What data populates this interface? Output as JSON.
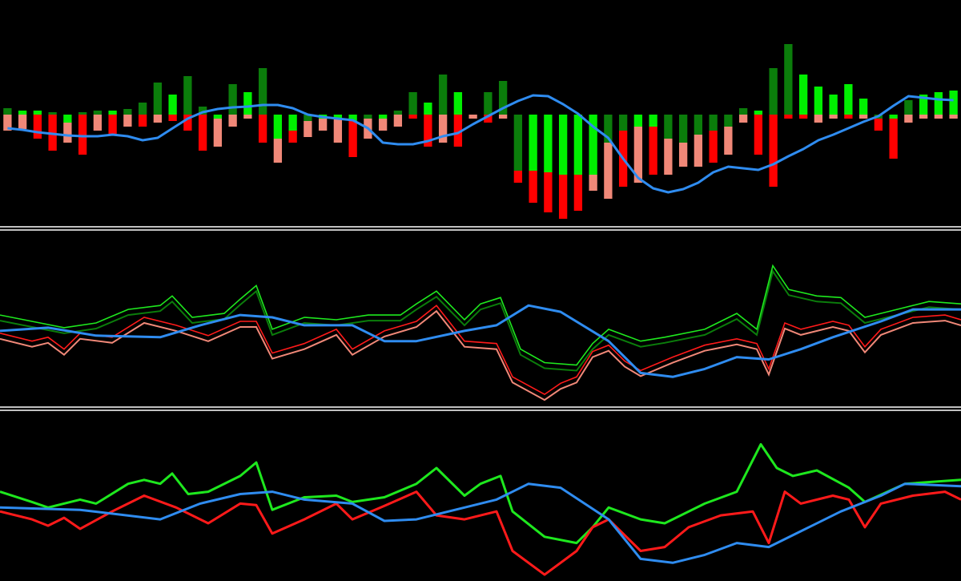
{
  "chart_data": [
    {
      "type": "bar",
      "ylim": [
        -137,
        143
      ],
      "series": [
        {
          "values": [
            8,
            5,
            5,
            3,
            -10,
            3,
            5,
            5,
            7,
            15,
            40,
            25,
            48,
            10,
            -5,
            38,
            28,
            58,
            -30,
            -20,
            -8,
            -5,
            -5,
            -8,
            -5,
            -5,
            5,
            28,
            15,
            50,
            28,
            0,
            28,
            42,
            -70,
            -70,
            -72,
            -75,
            -75,
            -75,
            -35,
            -20,
            -15,
            -15,
            -30,
            -35,
            -25,
            -20,
            -15,
            8,
            5,
            58,
            88,
            50,
            35,
            25,
            38,
            20,
            -5,
            -5,
            18,
            25,
            28,
            30
          ],
          "colors": [
            "#0b7d0b",
            "#00f000",
            "#00f000",
            "#0b7d0b",
            "#00f000",
            "#0b7d0b",
            "#0b7d0b",
            "#00f000",
            "#0b7d0b",
            "#0b7d0b",
            "#0b7d0b",
            "#00f000",
            "#0b7d0b",
            "#0b7d0b",
            "#00f000",
            "#0b7d0b",
            "#00f000",
            "#0b7d0b",
            "#00f000",
            "#00f000",
            "#0b7d0b",
            "#00f000",
            "#00f000",
            "#00f000",
            "#0b7d0b",
            "#00f000",
            "#0b7d0b",
            "#0b7d0b",
            "#00f000",
            "#0b7d0b",
            "#00f000",
            "#0b7d0b",
            "#0b7d0b",
            "#0b7d0b",
            "#0b7d0b",
            "#00f000",
            "#00f000",
            "#00f000",
            "#00f000",
            "#00f000",
            "#0b7d0b",
            "#0b7d0b",
            "#00f000",
            "#00f000",
            "#0b7d0b",
            "#0b7d0b",
            "#0b7d0b",
            "#0b7d0b",
            "#0b7d0b",
            "#0b7d0b",
            "#00f000",
            "#0b7d0b",
            "#0b7d0b",
            "#00f000",
            "#00f000",
            "#00f000",
            "#00f000",
            "#00f000",
            "#0b7d0b",
            "#00f000",
            "#0b7d0b",
            "#00f000",
            "#00f000",
            "#00f000"
          ]
        },
        {
          "values": [
            -20,
            -18,
            -30,
            -45,
            -25,
            -50,
            -20,
            -25,
            -15,
            -15,
            -10,
            -8,
            -20,
            -45,
            -35,
            -15,
            -5,
            -35,
            -30,
            -15,
            -20,
            -15,
            -30,
            -45,
            -25,
            -15,
            -15,
            -5,
            -40,
            -35,
            -40,
            -5,
            -10,
            -5,
            -15,
            -40,
            -50,
            -55,
            -45,
            -20,
            -70,
            -70,
            -70,
            -60,
            -45,
            -30,
            -40,
            -40,
            -35,
            -10,
            -50,
            -90,
            -5,
            -5,
            -10,
            -5,
            -5,
            -5,
            -15,
            -50,
            -10,
            -5,
            -5,
            -5
          ],
          "colors": [
            "#f08878",
            "#f08878",
            "#ff0000",
            "#ff0000",
            "#f08878",
            "#ff0000",
            "#f08878",
            "#ff0000",
            "#f08878",
            "#ff0000",
            "#f08878",
            "#ff0000",
            "#ff0000",
            "#ff0000",
            "#f08878",
            "#f08878",
            "#f08878",
            "#ff0000",
            "#f08878",
            "#ff0000",
            "#f08878",
            "#f08878",
            "#f08878",
            "#ff0000",
            "#f08878",
            "#f08878",
            "#f08878",
            "#ff0000",
            "#ff0000",
            "#f08878",
            "#ff0000",
            "#f08878",
            "#ff0000",
            "#f08878",
            "#ff0000",
            "#ff0000",
            "#ff0000",
            "#ff0000",
            "#ff0000",
            "#f08878",
            "#f08878",
            "#ff0000",
            "#f08878",
            "#ff0000",
            "#f08878",
            "#f08878",
            "#f08878",
            "#ff0000",
            "#f08878",
            "#f08878",
            "#ff0000",
            "#ff0000",
            "#ff0000",
            "#ff0000",
            "#f08878",
            "#f08878",
            "#ff0000",
            "#f08878",
            "#ff0000",
            "#ff0000",
            "#f08878",
            "#f08878",
            "#f08878",
            "#f08878"
          ]
        }
      ],
      "line": {
        "color": "#2f8cf0",
        "values": [
          -17,
          -19,
          -22,
          -24,
          -26,
          -27,
          -27,
          -25,
          -27,
          -32,
          -29,
          -17,
          -5,
          3,
          7,
          9,
          10,
          12,
          12,
          8,
          0,
          -3,
          -5,
          -7,
          -17,
          -35,
          -37,
          -37,
          -33,
          -27,
          -23,
          -12,
          -2,
          8,
          17,
          24,
          23,
          13,
          1,
          -15,
          -29,
          -55,
          -79,
          -92,
          -97,
          -93,
          -85,
          -72,
          -65,
          -67,
          -69,
          -62,
          -52,
          -43,
          -32,
          -25,
          -17,
          -9,
          -2,
          11,
          23,
          21,
          19,
          18
        ]
      }
    },
    {
      "type": "line",
      "xlim": [
        0,
        1200
      ],
      "ylim": [
        0,
        215
      ],
      "series": [
        {
          "color": "#1ee81e",
          "shadow_color": "#0b7d0b",
          "x": [
            0,
            40,
            80,
            120,
            160,
            200,
            215,
            240,
            280,
            300,
            320,
            340,
            380,
            420,
            460,
            500,
            520,
            545,
            580,
            600,
            625,
            650,
            680,
            720,
            740,
            760,
            800,
            830,
            880,
            920,
            945,
            965,
            985,
            1020,
            1050,
            1080,
            1120,
            1160,
            1200
          ],
          "values": [
            113,
            105,
            97,
            103,
            120,
            125,
            137,
            110,
            115,
            133,
            150,
            95,
            110,
            107,
            113,
            113,
            127,
            143,
            107,
            127,
            135,
            70,
            53,
            50,
            77,
            95,
            80,
            85,
            95,
            115,
            95,
            175,
            145,
            137,
            135,
            110,
            120,
            130,
            127
          ]
        },
        {
          "color": "#ff1a1a",
          "shadow_color": "#f08878",
          "x": [
            0,
            40,
            60,
            80,
            100,
            140,
            180,
            220,
            260,
            300,
            320,
            340,
            380,
            420,
            440,
            480,
            520,
            545,
            580,
            620,
            640,
            680,
            700,
            720,
            740,
            760,
            780,
            800,
            840,
            880,
            920,
            945,
            960,
            980,
            1000,
            1040,
            1060,
            1080,
            1100,
            1140,
            1180,
            1200
          ],
          "values": [
            90,
            80,
            85,
            70,
            90,
            85,
            110,
            100,
            87,
            105,
            105,
            65,
            77,
            95,
            70,
            93,
            105,
            125,
            80,
            77,
            35,
            13,
            27,
            35,
            67,
            75,
            55,
            43,
            60,
            75,
            83,
            77,
            45,
            103,
            95,
            105,
            100,
            73,
            95,
            110,
            113,
            107
          ]
        },
        {
          "color": "#2f8cf0",
          "x": [
            0,
            60,
            120,
            200,
            250,
            300,
            340,
            380,
            440,
            480,
            520,
            580,
            620,
            660,
            700,
            760,
            800,
            840,
            880,
            920,
            960,
            1000,
            1040,
            1100,
            1140,
            1200
          ],
          "values": [
            93,
            97,
            87,
            85,
            100,
            113,
            110,
            100,
            100,
            80,
            80,
            93,
            100,
            125,
            117,
            80,
            40,
            35,
            45,
            60,
            57,
            70,
            85,
            105,
            120,
            120
          ]
        }
      ]
    },
    {
      "type": "line",
      "xlim": [
        0,
        1200
      ],
      "ylim": [
        0,
        210
      ],
      "series": [
        {
          "color": "#1ee81e",
          "x": [
            0,
            40,
            60,
            100,
            120,
            160,
            180,
            200,
            215,
            235,
            260,
            300,
            320,
            340,
            380,
            420,
            440,
            480,
            520,
            545,
            580,
            600,
            625,
            640,
            680,
            720,
            740,
            760,
            800,
            830,
            880,
            920,
            950,
            970,
            990,
            1020,
            1060,
            1080,
            1130,
            1200
          ],
          "values": [
            110,
            97,
            90,
            100,
            95,
            120,
            125,
            120,
            133,
            107,
            110,
            130,
            147,
            87,
            103,
            105,
            97,
            103,
            120,
            140,
            105,
            120,
            130,
            85,
            53,
            45,
            65,
            90,
            75,
            70,
            95,
            110,
            170,
            140,
            130,
            137,
            115,
            97,
            120,
            125
          ]
        },
        {
          "color": "#ff1a1a",
          "x": [
            0,
            40,
            60,
            80,
            100,
            140,
            180,
            220,
            260,
            300,
            320,
            340,
            380,
            420,
            440,
            480,
            520,
            545,
            580,
            620,
            640,
            680,
            700,
            720,
            740,
            760,
            780,
            800,
            830,
            860,
            900,
            940,
            960,
            980,
            1000,
            1040,
            1060,
            1080,
            1100,
            1140,
            1180,
            1200
          ],
          "values": [
            85,
            75,
            67,
            77,
            63,
            85,
            105,
            90,
            70,
            95,
            93,
            57,
            75,
            95,
            75,
            92,
            110,
            80,
            75,
            85,
            35,
            5,
            20,
            35,
            65,
            75,
            55,
            35,
            40,
            65,
            80,
            85,
            45,
            110,
            95,
            105,
            100,
            65,
            95,
            105,
            110,
            100
          ]
        },
        {
          "color": "#2f8cf0",
          "x": [
            0,
            100,
            200,
            250,
            300,
            340,
            380,
            440,
            480,
            520,
            580,
            620,
            660,
            700,
            760,
            800,
            840,
            880,
            920,
            960,
            1000,
            1050,
            1100,
            1130,
            1200
          ],
          "values": [
            90,
            87,
            75,
            95,
            107,
            110,
            100,
            95,
            73,
            75,
            90,
            100,
            120,
            115,
            75,
            25,
            20,
            30,
            45,
            40,
            60,
            85,
            105,
            120,
            117
          ]
        }
      ]
    }
  ]
}
